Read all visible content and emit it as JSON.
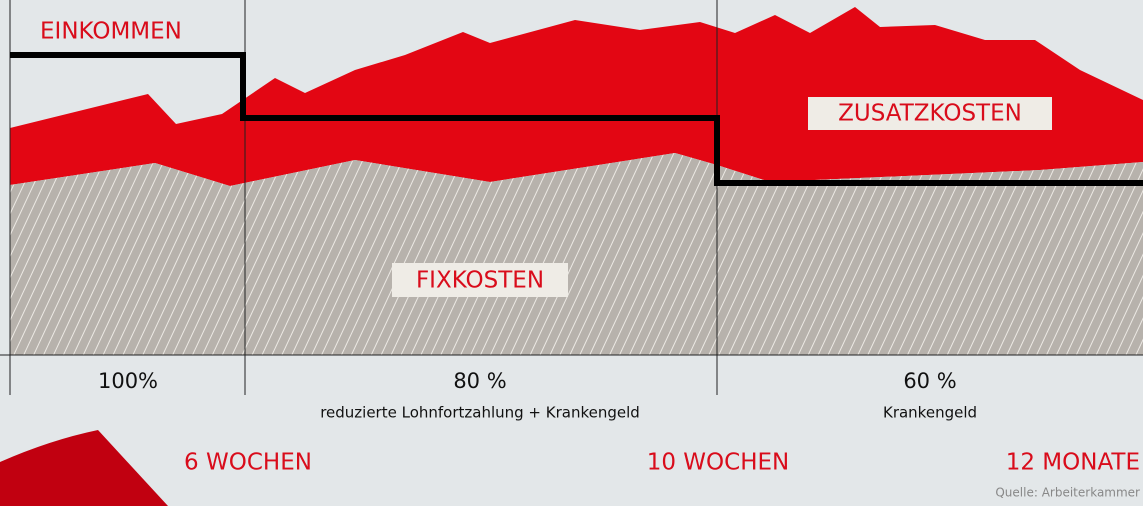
{
  "income_label": "EINKOMMEN",
  "areas": {
    "extra": "ZUSATZKOSTEN",
    "fixed": "FIXKOSTEN"
  },
  "phases": [
    {
      "rate": "100%"
    },
    {
      "rate": "80 %",
      "note": "reduzierte Lohnfortzahlung + Krankengeld"
    },
    {
      "rate": "60 %",
      "note": "Krankengeld"
    }
  ],
  "durations": [
    "6 WOCHEN",
    "10 WOCHEN",
    "12 MONATE"
  ],
  "source": "Quelle: Arbeiterkammer"
}
